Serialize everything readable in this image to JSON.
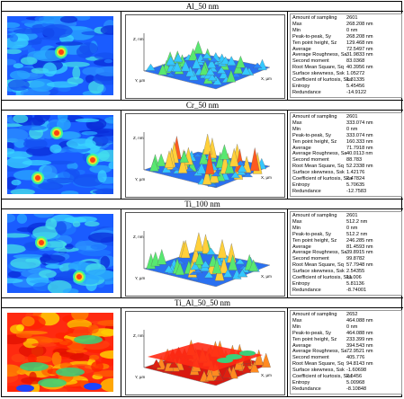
{
  "panels": [
    {
      "title": "Al_50 nm",
      "palette": "blue",
      "stats": [
        {
          "label": "Amount of sampling",
          "value": "2601"
        },
        {
          "label": "Max",
          "value": "268.208 nm"
        },
        {
          "label": "Min",
          "value": "0 nm"
        },
        {
          "label": "Peak-to-peak, Sy",
          "value": "268.208 nm"
        },
        {
          "label": "Ten point height, Sz",
          "value": "129.468 nm"
        },
        {
          "label": "Average",
          "value": "72.5497 nm"
        },
        {
          "label": "Average Roughness, Sa",
          "value": "31.9833 nm"
        },
        {
          "label": "Second moment",
          "value": "83.0368"
        },
        {
          "label": "Root Mean Square, Sq",
          "value": "40.3956 nm"
        },
        {
          "label": "Surface skewness, Ssk",
          "value": "1.05272"
        },
        {
          "label": "Coefficient of kurtosis, Ska",
          "value": "1.31335"
        },
        {
          "label": "Entropy",
          "value": "5.45456"
        },
        {
          "label": "Redundance",
          "value": "-14.9122"
        }
      ]
    },
    {
      "title": "Cr_50 nm",
      "palette": "blue",
      "stats": [
        {
          "label": "Amount of sampling",
          "value": "2601"
        },
        {
          "label": "Max",
          "value": "333.074 nm"
        },
        {
          "label": "Min",
          "value": "0 nm"
        },
        {
          "label": "Peak-to-peak, Sy",
          "value": "333.074 nm"
        },
        {
          "label": "Ten point height, Sz",
          "value": "160.333 nm"
        },
        {
          "label": "Average",
          "value": "71.7918 nm"
        },
        {
          "label": "Average Roughness, Sa",
          "value": "40.0113 nm"
        },
        {
          "label": "Second moment",
          "value": "88.783"
        },
        {
          "label": "Root Mean Square, Sq",
          "value": "52.2338 nm"
        },
        {
          "label": "Surface skewness, Ssk",
          "value": "1.42176"
        },
        {
          "label": "Coefficient of kurtosis, Ska",
          "value": "2.47824"
        },
        {
          "label": "Entropy",
          "value": "5.70635"
        },
        {
          "label": "Redundance",
          "value": "-12.7583"
        }
      ]
    },
    {
      "title": "Ti_100 nm",
      "palette": "blue",
      "stats": [
        {
          "label": "Amount of sampling",
          "value": "2601"
        },
        {
          "label": "Max",
          "value": "512.2 nm"
        },
        {
          "label": "Min",
          "value": "0 nm"
        },
        {
          "label": "Peak-to-peak, Sy",
          "value": "512.2 nm"
        },
        {
          "label": "Ten point height, Sz",
          "value": "246.285 nm"
        },
        {
          "label": "Average",
          "value": "81.4593 nm"
        },
        {
          "label": "Average Roughness, Sa",
          "value": "39.8915 nm"
        },
        {
          "label": "Second moment",
          "value": "99.8782"
        },
        {
          "label": "Root Mean Square, Sq",
          "value": "57.7948 nm"
        },
        {
          "label": "Surface skewness, Ssk",
          "value": "2.54355"
        },
        {
          "label": "Coefficient of kurtosis, Ska",
          "value": "11.006"
        },
        {
          "label": "Entropy",
          "value": "5.81136"
        },
        {
          "label": "Redundance",
          "value": "-8.74001"
        }
      ]
    },
    {
      "title": "Ti_Al_50_50 nm",
      "palette": "red",
      "stats": [
        {
          "label": "Amount of sampling",
          "value": "2652"
        },
        {
          "label": "Max",
          "value": "464.088 nm"
        },
        {
          "label": "Min",
          "value": "0 nm"
        },
        {
          "label": "Peak-to-peak, Sy",
          "value": "464.088 nm"
        },
        {
          "label": "Ten point height, Sz",
          "value": "233.399 nm"
        },
        {
          "label": "Average",
          "value": "394.543 nm"
        },
        {
          "label": "Average Roughness, Sa",
          "value": "72.9521 nm"
        },
        {
          "label": "Second moment",
          "value": "405.776"
        },
        {
          "label": "Root Mean Square, Sq",
          "value": "94.8143 nm"
        },
        {
          "label": "Surface skewness, Ssk",
          "value": "-1.60698"
        },
        {
          "label": "Coefficient of kurtosis, Ska",
          "value": "2.5456"
        },
        {
          "label": "Entropy",
          "value": "5.00968"
        },
        {
          "label": "Redundance",
          "value": "-8.10848"
        }
      ]
    }
  ],
  "axis_labels": {
    "z": "Z, nm",
    "y": "Y, µm",
    "x": "X, µm"
  }
}
